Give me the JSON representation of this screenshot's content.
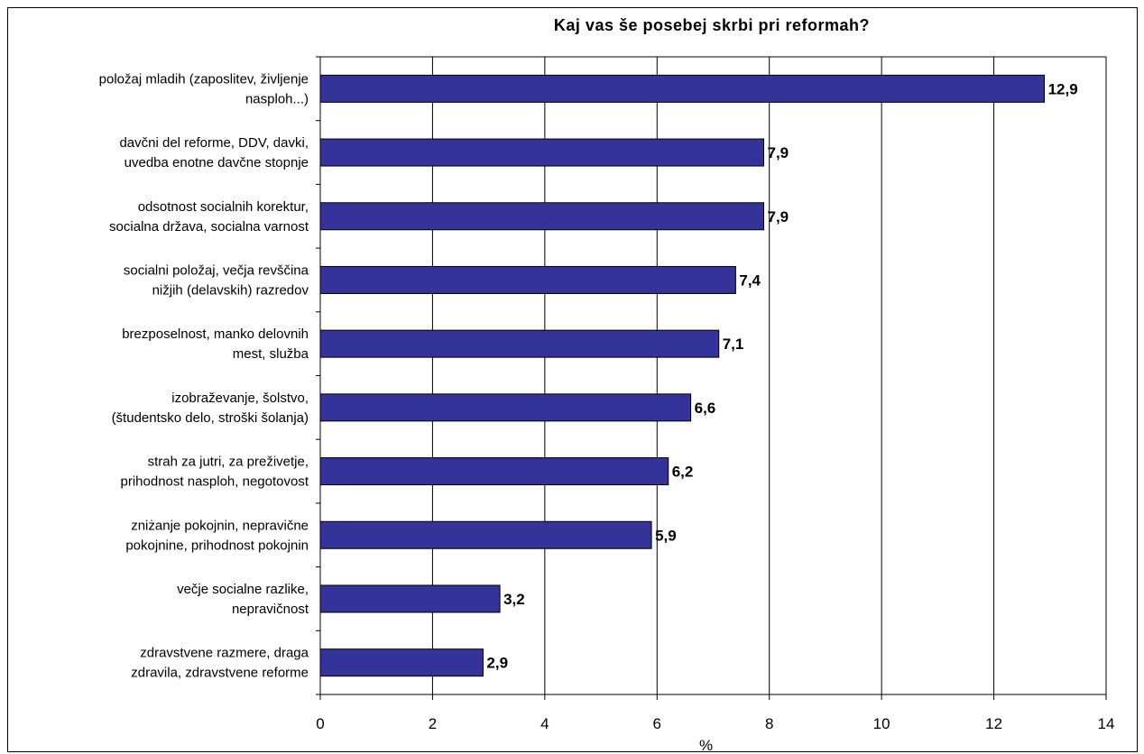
{
  "chart_data": {
    "type": "bar",
    "orientation": "horizontal",
    "title": "Kaj vas še posebej skrbi pri reformah?",
    "xlabel": "%",
    "ylabel": "",
    "xlim": [
      0,
      14
    ],
    "xticks": [
      0,
      2,
      4,
      6,
      8,
      10,
      12,
      14
    ],
    "xtick_labels": [
      "0",
      "2",
      "4",
      "6",
      "8",
      "10",
      "12",
      "14"
    ],
    "grid": "vertical",
    "bar_color": "#333399",
    "categories": [
      [
        "položaj mladih (zaposlitev, življenje",
        "nasploh...)"
      ],
      [
        "davčni del reforme, DDV, davki,",
        "uvedba enotne davčne stopnje"
      ],
      [
        "odsotnost socialnih korektur,",
        "socialna država, socialna varnost"
      ],
      [
        "socialni položaj, večja revščina",
        "nižjih (delavskih)  razredov"
      ],
      [
        "brezposelnost, manko delovnih",
        "mest, služba"
      ],
      [
        "izobraževanje, šolstvo,",
        "(študentsko delo, stroški šolanja)"
      ],
      [
        "strah za jutri, za preživetje,",
        "prihodnost nasploh, negotovost"
      ],
      [
        "zniżanje pokojnin, nepravične",
        "pokojnine, prihodnost pokojnin"
      ],
      [
        "večje socialne razlike,",
        "nepravičnost"
      ],
      [
        "zdravstvene razmere, draga",
        "zdravila, zdravstvene reforme"
      ]
    ],
    "values": [
      12.9,
      7.9,
      7.9,
      7.4,
      7.1,
      6.6,
      6.2,
      5.9,
      3.2,
      2.9
    ],
    "value_labels": [
      "12,9",
      "7,9",
      "7,9",
      "7,4",
      "7,1",
      "6,6",
      "6,2",
      "5,9",
      "3,2",
      "2,9"
    ]
  }
}
